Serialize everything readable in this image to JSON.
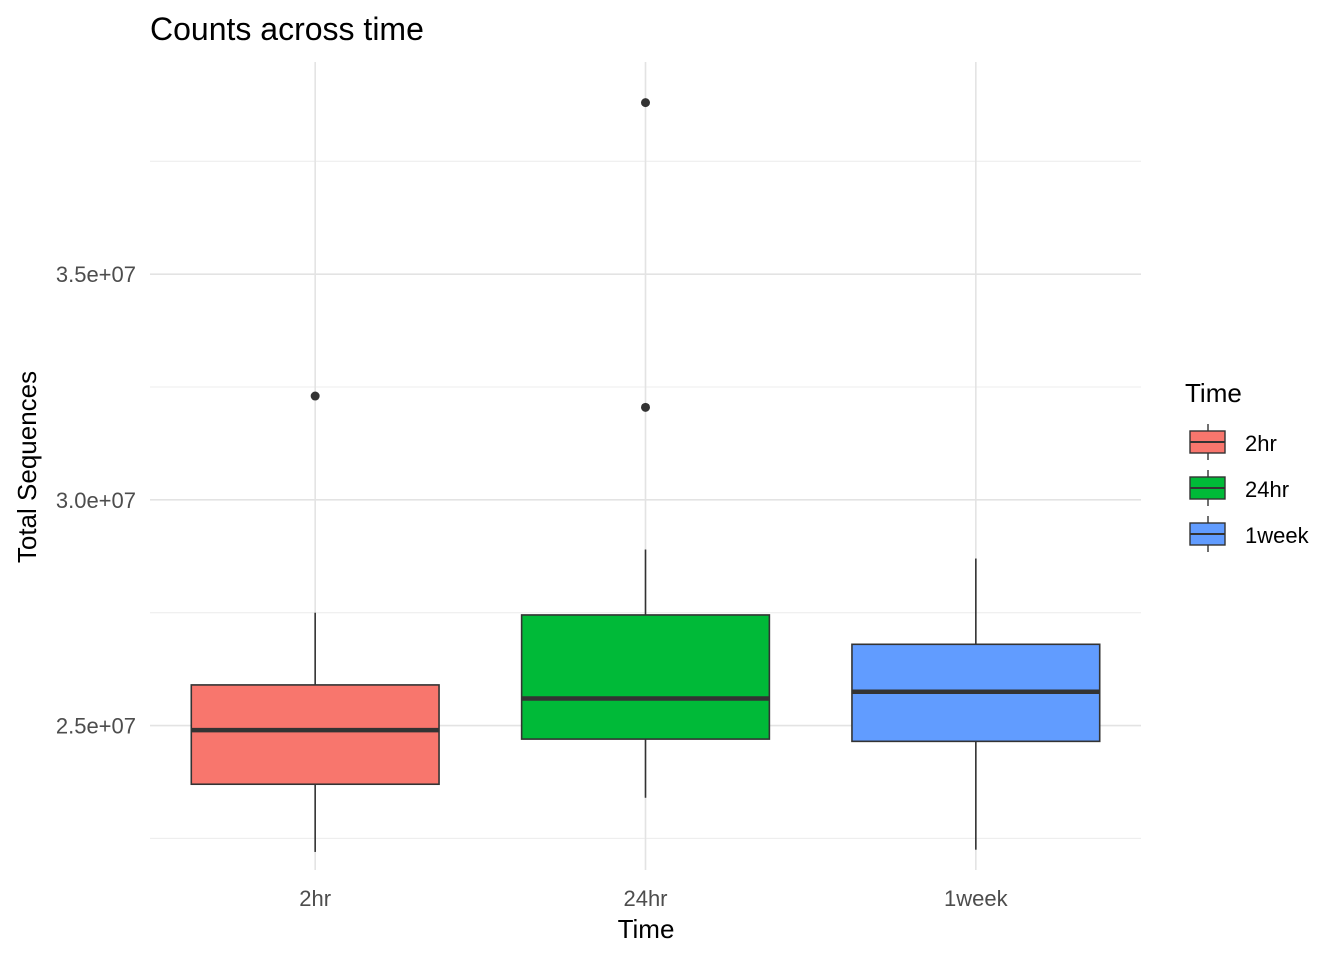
{
  "chart_data": {
    "type": "box",
    "title": "Counts across time",
    "xlabel": "Time",
    "ylabel": "Total Sequences",
    "ylim": [
      21800000,
      39700000
    ],
    "y_ticks": [
      {
        "value": 25000000,
        "label": "2.5e+07"
      },
      {
        "value": 30000000,
        "label": "3.0e+07"
      },
      {
        "value": 35000000,
        "label": "3.5e+07"
      }
    ],
    "grid": true,
    "legend": {
      "title": "Time",
      "placement": "right",
      "entries": [
        "2hr",
        "24hr",
        "1week"
      ]
    },
    "categories": [
      "2hr",
      "24hr",
      "1week"
    ],
    "colors": [
      "#F8766D",
      "#00BA38",
      "#619CFF"
    ],
    "series": [
      {
        "category": "2hr",
        "min": 22200000,
        "q1": 23700000,
        "median": 24900000,
        "q3": 25900000,
        "max": 27500000,
        "outliers": [
          32300000
        ]
      },
      {
        "category": "24hr",
        "min": 23400000,
        "q1": 24700000,
        "median": 25600000,
        "q3": 27450000,
        "max": 28900000,
        "outliers": [
          32050000,
          38800000
        ]
      },
      {
        "category": "1week",
        "min": 22250000,
        "q1": 24650000,
        "median": 25750000,
        "q3": 26800000,
        "max": 28700000,
        "outliers": []
      }
    ]
  }
}
